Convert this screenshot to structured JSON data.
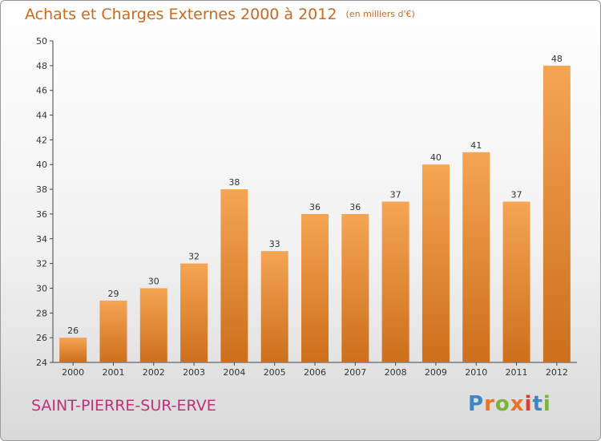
{
  "header": {
    "title": "Achats et Charges Externes 2000 à 2012",
    "unit": "(en milliers d'€)"
  },
  "footer": {
    "commune": "SAINT-PIERRE-SUR-ERVE",
    "logo": "Proxiti"
  },
  "colors": {
    "bar_top": "#f5a553",
    "bar_bottom": "#cd6f1c",
    "title": "#c86a1f",
    "commune": "#c0317a",
    "logo_letters": [
      "#3f86c6",
      "#e8742a",
      "#7cb33a",
      "#e8742a",
      "#e03c2f",
      "#3f86c6",
      "#7cb33a"
    ]
  },
  "chart_data": {
    "type": "bar",
    "title": "Achats et Charges Externes 2000 à 2012",
    "ylabel": "",
    "xlabel": "",
    "categories": [
      "2000",
      "2001",
      "2002",
      "2003",
      "2004",
      "2005",
      "2006",
      "2007",
      "2008",
      "2009",
      "2010",
      "2011",
      "2012"
    ],
    "values": [
      26,
      29,
      30,
      32,
      38,
      33,
      36,
      36,
      37,
      40,
      41,
      37,
      48
    ],
    "ylim": [
      24,
      50
    ],
    "yticks": [
      24,
      26,
      28,
      30,
      32,
      34,
      36,
      38,
      40,
      42,
      44,
      46,
      48,
      50
    ],
    "grid": false,
    "legend": "none"
  }
}
